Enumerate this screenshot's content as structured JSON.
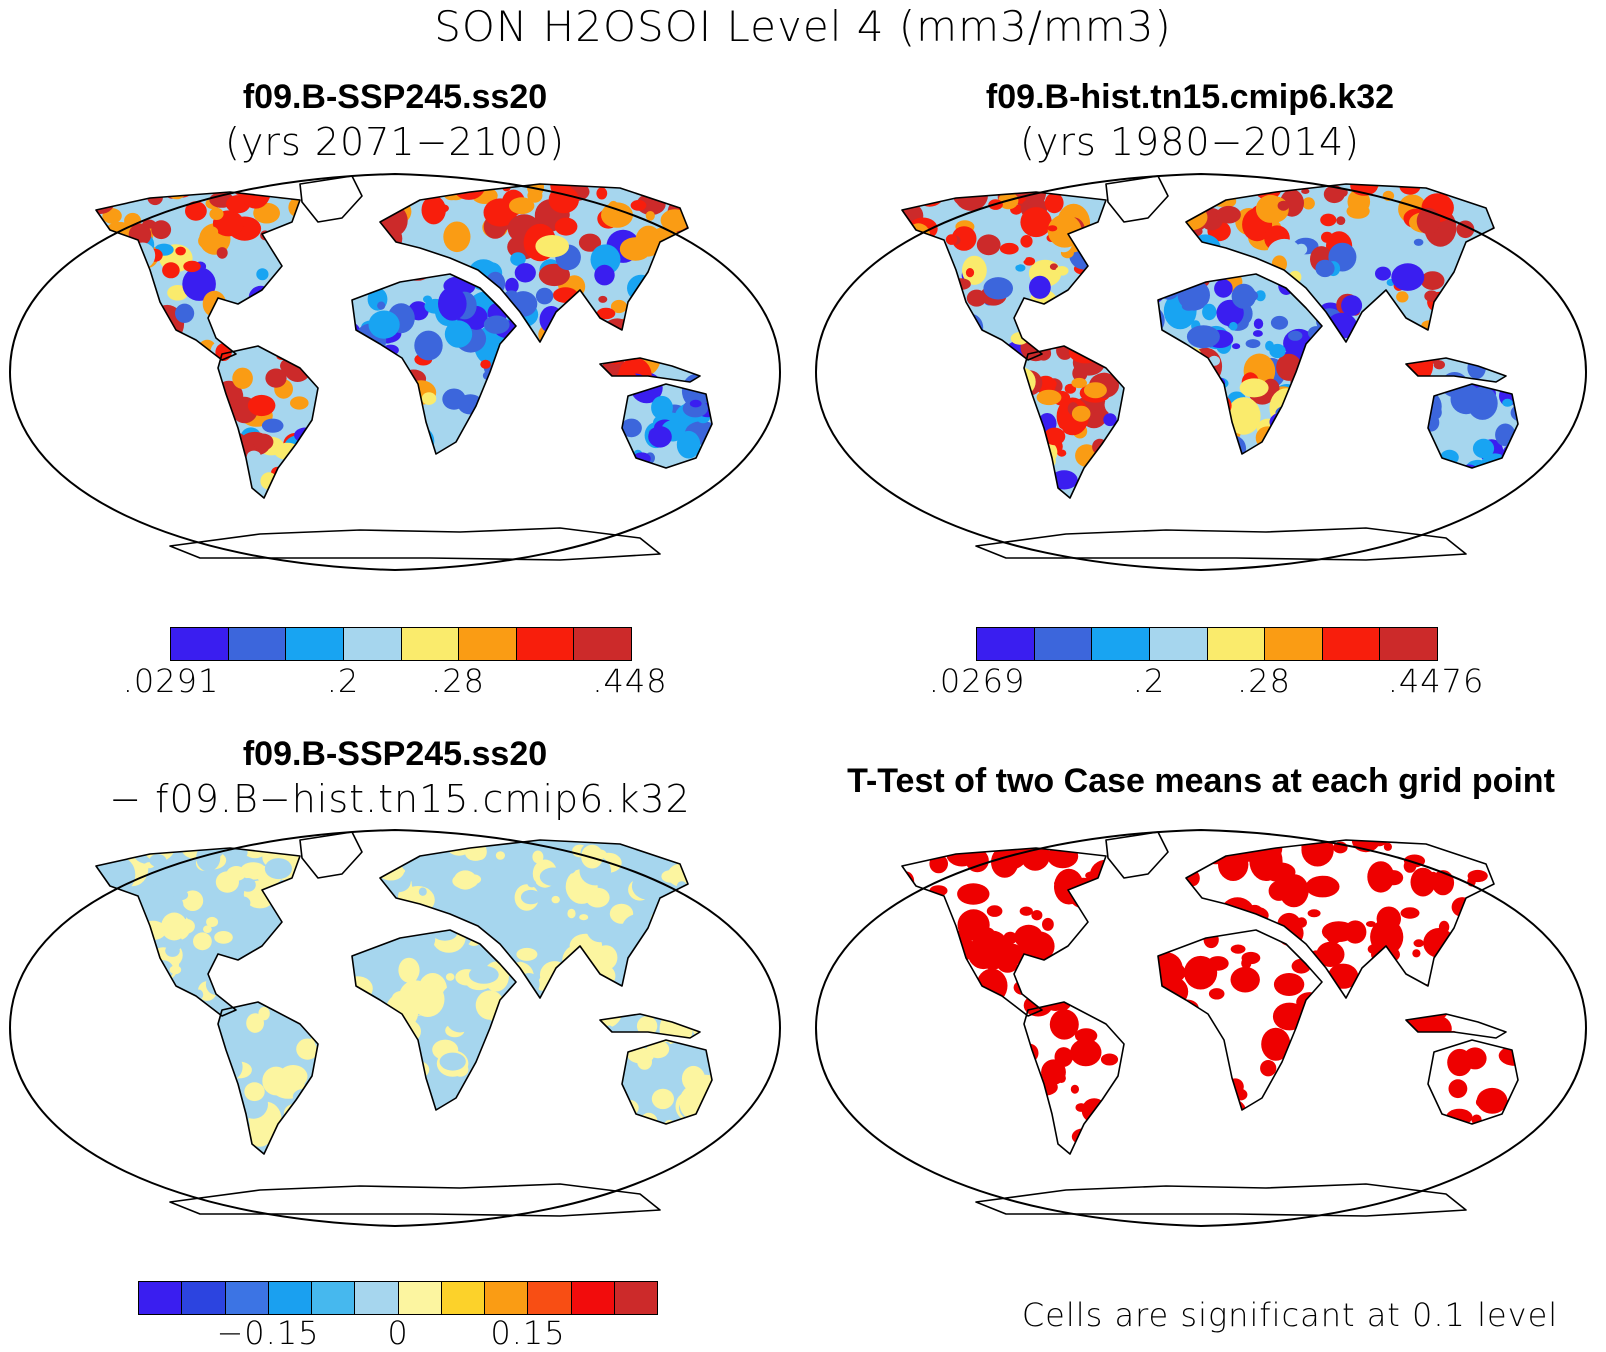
{
  "title": "SON H2OSOI Level 4 (mm3/mm3)",
  "panels": {
    "top_left": {
      "title": "f09.B-SSP245.ss20",
      "subtitle": "(yrs 2071−2100)"
    },
    "top_right": {
      "title": "f09.B-hist.tn15.cmip6.k32",
      "subtitle": "(yrs 1980−2014)"
    },
    "bottom_left": {
      "title": "f09.B-SSP245.ss20",
      "subtitle": "− f09.B−hist.tn15.cmip6.k32"
    },
    "bottom_right": {
      "title": "T-Test of two Case means at each grid point",
      "note": "Cells are significant at 0.1 level"
    }
  },
  "colorbars": {
    "abs_left": {
      "colors": [
        "#3a1ef0",
        "#3c66dc",
        "#18a4f2",
        "#a6d6ee",
        "#faeb6c",
        "#fa9c14",
        "#f81e0c",
        "#cc2a2a"
      ],
      "ticks": [
        ".0291",
        ".2",
        ".28",
        ".448"
      ]
    },
    "abs_right": {
      "colors": [
        "#3a1ef0",
        "#3c66dc",
        "#18a4f2",
        "#a6d6ee",
        "#faeb6c",
        "#fa9c14",
        "#f81e0c",
        "#cc2a2a"
      ],
      "ticks": [
        ".0269",
        ".2",
        ".28",
        ".4476"
      ]
    },
    "diff": {
      "colors": [
        "#3a1ef0",
        "#2c44e0",
        "#3c74e4",
        "#1aa0f0",
        "#46b8ee",
        "#a6d6ee",
        "#fcf5a0",
        "#fcd22a",
        "#fa9c14",
        "#f84e14",
        "#f20c0c",
        "#cc2a2a"
      ],
      "ticks": [
        "−0.15",
        "0",
        "0.15"
      ]
    }
  },
  "colors": {
    "significant": "#ee0000",
    "land_outline": "#000000"
  }
}
